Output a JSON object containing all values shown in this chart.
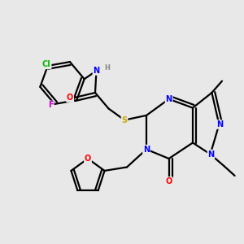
{
  "background_color": "#e8e8e8",
  "atom_colors": {
    "C": "#000000",
    "N": "#0000ff",
    "O": "#ff0000",
    "S": "#ccaa00",
    "F": "#cc00cc",
    "Cl": "#00bb00",
    "H": "#888888"
  },
  "figsize": [
    3.0,
    3.0
  ],
  "dpi": 100,
  "lw": 1.6,
  "fs": 7.0
}
